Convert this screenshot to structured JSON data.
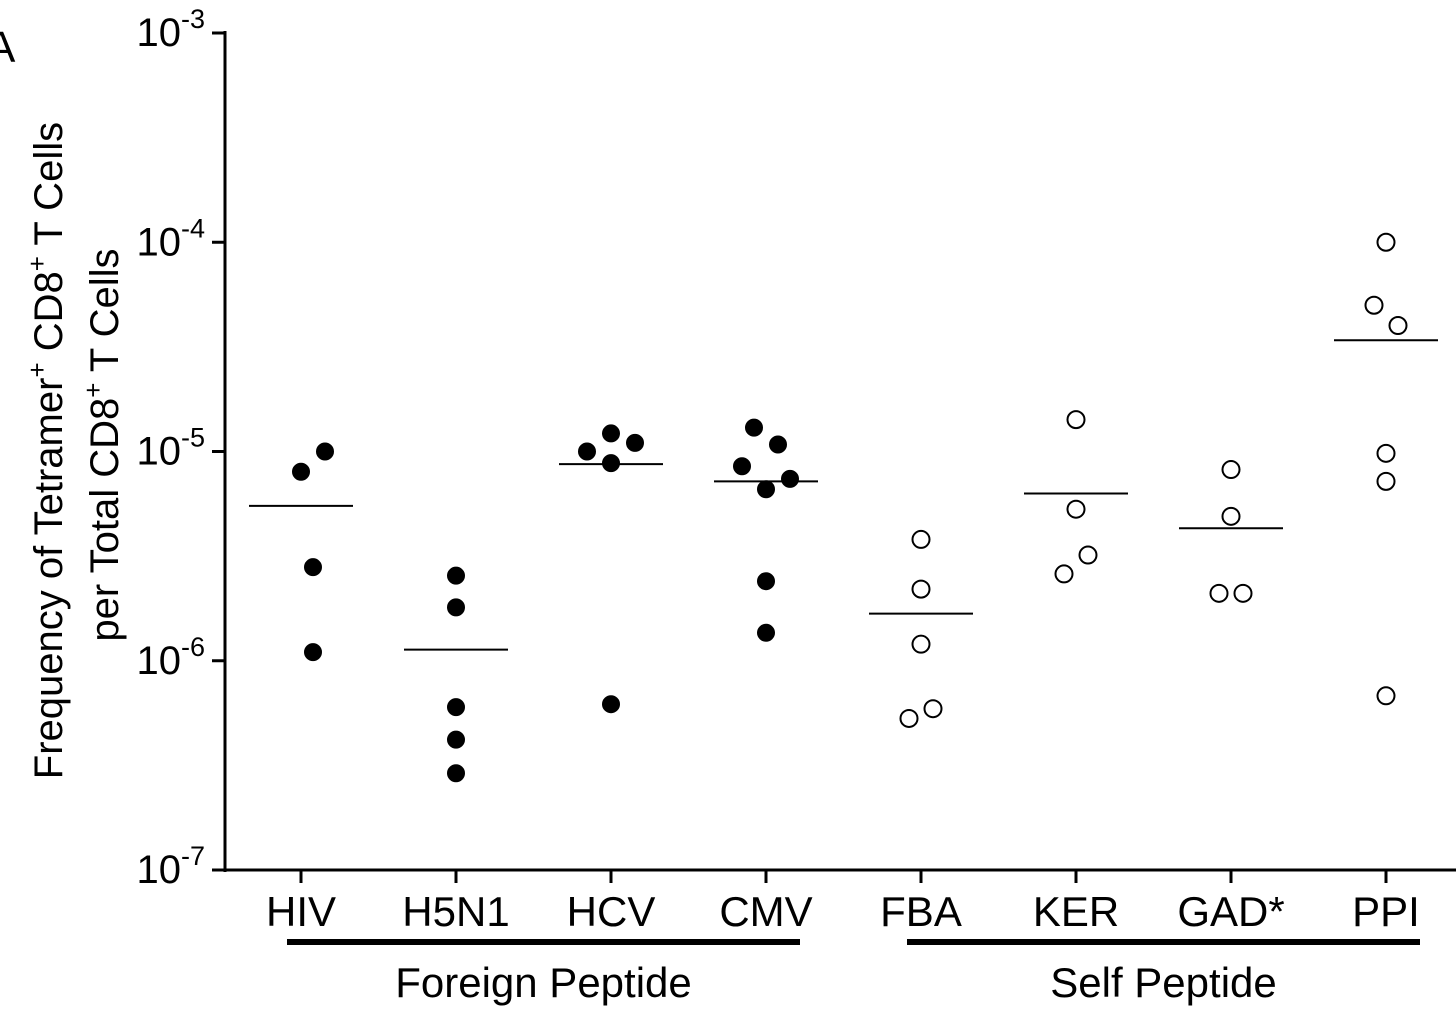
{
  "panel_label": "A",
  "chart_data": {
    "type": "scatter",
    "ylabel_line1_parts": [
      "Frequency of Tetramer",
      "+",
      " CD8",
      "+",
      " T Cells"
    ],
    "ylabel_line2_parts": [
      "per Total CD8",
      "+",
      " T Cells"
    ],
    "y_scale": "log",
    "ylim": [
      1e-07,
      0.001
    ],
    "y_ticks": [
      {
        "base": "10",
        "exp": "-3",
        "value": 0.001
      },
      {
        "base": "10",
        "exp": "-4",
        "value": 0.0001
      },
      {
        "base": "10",
        "exp": "-5",
        "value": 1e-05
      },
      {
        "base": "10",
        "exp": "-6",
        "value": 1e-06
      },
      {
        "base": "10",
        "exp": "-7",
        "value": 1e-07
      }
    ],
    "categories": [
      "HIV",
      "H5N1",
      "HCV",
      "CMV",
      "FBA",
      "KER",
      "GAD*",
      "PPI"
    ],
    "groups": [
      {
        "label": "Foreign Peptide",
        "categories": [
          "HIV",
          "H5N1",
          "HCV",
          "CMV"
        ],
        "marker": "filled"
      },
      {
        "label": "Self Peptide",
        "categories": [
          "FBA",
          "KER",
          "GAD*",
          "PPI"
        ],
        "marker": "open"
      }
    ],
    "series": [
      {
        "category": "HIV",
        "marker": "filled",
        "median": 5.5e-06,
        "points": [
          {
            "offset": 0,
            "y": 8e-06
          },
          {
            "offset": 1,
            "y": 1e-05
          },
          {
            "offset": 0.5,
            "y": 2.8e-06
          },
          {
            "offset": 0.5,
            "y": 1.1e-06
          }
        ]
      },
      {
        "category": "H5N1",
        "marker": "filled",
        "median": 1.13e-06,
        "points": [
          {
            "offset": 0,
            "y": 2.55e-06
          },
          {
            "offset": 0,
            "y": 1.8e-06
          },
          {
            "offset": 0,
            "y": 6e-07
          },
          {
            "offset": 0,
            "y": 4.2e-07
          },
          {
            "offset": 0,
            "y": 2.9e-07
          }
        ]
      },
      {
        "category": "HCV",
        "marker": "filled",
        "median": 8.7e-06,
        "points": [
          {
            "offset": -1,
            "y": 1e-05
          },
          {
            "offset": 0,
            "y": 1.22e-05
          },
          {
            "offset": 1,
            "y": 1.1e-05
          },
          {
            "offset": 0,
            "y": 8.8e-06
          },
          {
            "offset": 0,
            "y": 6.2e-07
          }
        ]
      },
      {
        "category": "CMV",
        "marker": "filled",
        "median": 7.2e-06,
        "points": [
          {
            "offset": -0.5,
            "y": 1.3e-05
          },
          {
            "offset": 0.5,
            "y": 1.08e-05
          },
          {
            "offset": -1,
            "y": 8.5e-06
          },
          {
            "offset": 1,
            "y": 7.4e-06
          },
          {
            "offset": 0,
            "y": 6.6e-06
          },
          {
            "offset": 0,
            "y": 2.4e-06
          },
          {
            "offset": 0,
            "y": 1.36e-06
          }
        ]
      },
      {
        "category": "FBA",
        "marker": "open",
        "median": 1.68e-06,
        "points": [
          {
            "offset": 0,
            "y": 3.8e-06
          },
          {
            "offset": 0,
            "y": 2.2e-06
          },
          {
            "offset": 0,
            "y": 1.2e-06
          },
          {
            "offset": 0.5,
            "y": 5.9e-07
          },
          {
            "offset": -0.5,
            "y": 5.3e-07
          }
        ]
      },
      {
        "category": "KER",
        "marker": "open",
        "median": 6.3e-06,
        "points": [
          {
            "offset": 0,
            "y": 1.42e-05
          },
          {
            "offset": 0,
            "y": 5.3e-06
          },
          {
            "offset": 0.5,
            "y": 3.2e-06
          },
          {
            "offset": -0.5,
            "y": 2.6e-06
          }
        ]
      },
      {
        "category": "GAD*",
        "marker": "open",
        "median": 4.3e-06,
        "points": [
          {
            "offset": 0,
            "y": 8.2e-06
          },
          {
            "offset": 0,
            "y": 4.9e-06
          },
          {
            "offset": -0.5,
            "y": 2.1e-06
          },
          {
            "offset": 0.5,
            "y": 2.1e-06
          }
        ]
      },
      {
        "category": "PPI",
        "marker": "open",
        "median": 3.4e-05,
        "points": [
          {
            "offset": 0,
            "y": 0.0001
          },
          {
            "offset": -0.5,
            "y": 5e-05
          },
          {
            "offset": 0.5,
            "y": 4e-05
          },
          {
            "offset": 0,
            "y": 9.8e-06
          },
          {
            "offset": 0,
            "y": 7.2e-06
          },
          {
            "offset": 0,
            "y": 6.8e-07
          }
        ]
      }
    ],
    "grid": false,
    "legend": "none"
  }
}
